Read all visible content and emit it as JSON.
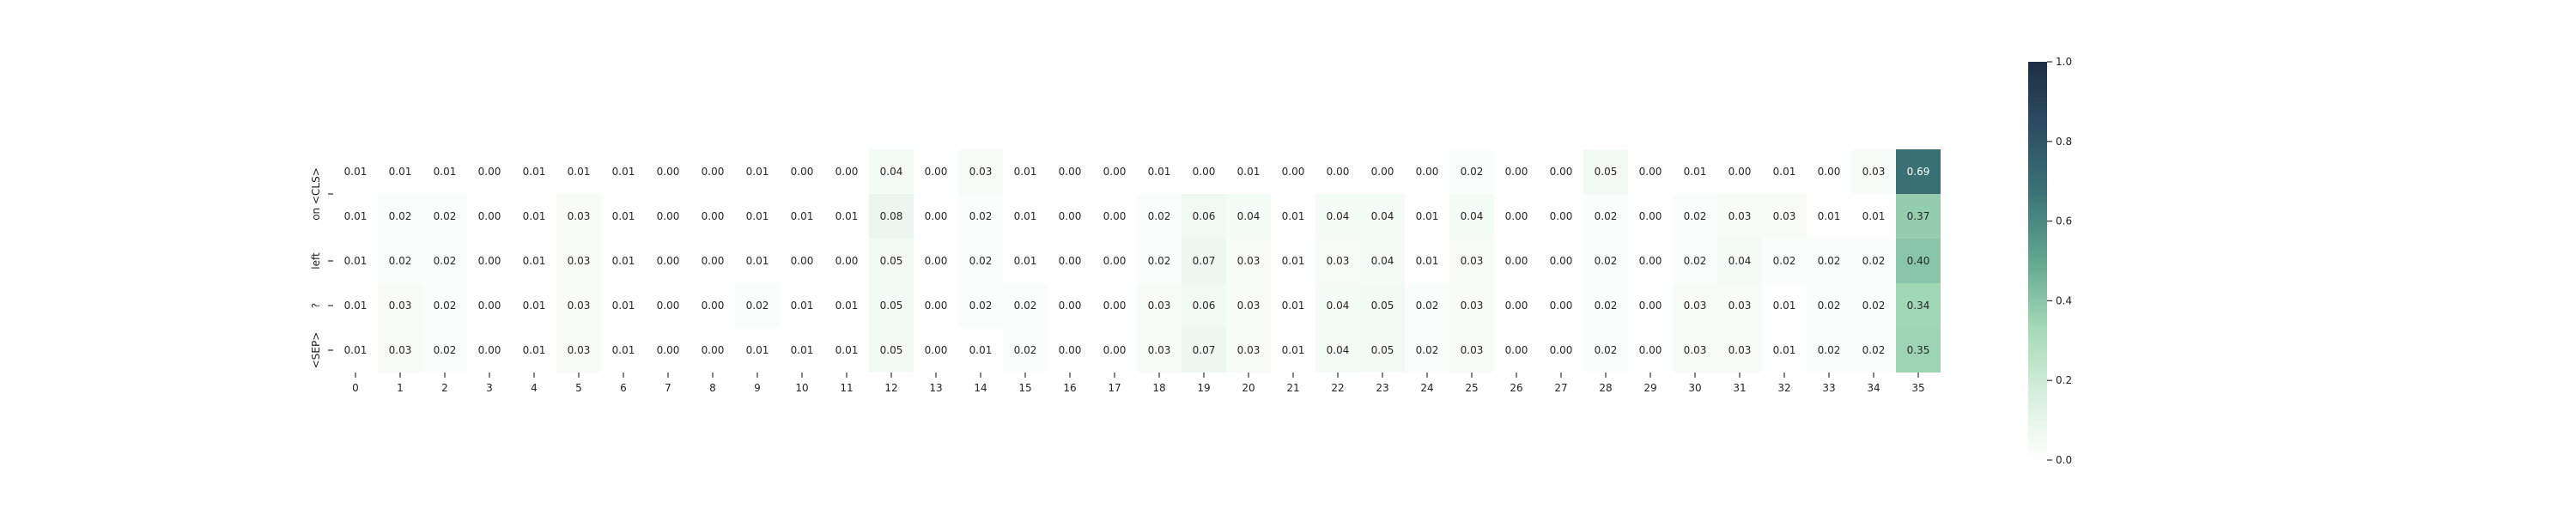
{
  "chart_data": {
    "type": "heatmap",
    "title": "",
    "xlabel": "",
    "ylabel": "",
    "x_categories": [
      "0",
      "1",
      "2",
      "3",
      "4",
      "5",
      "6",
      "7",
      "8",
      "9",
      "10",
      "11",
      "12",
      "13",
      "14",
      "15",
      "16",
      "17",
      "18",
      "19",
      "20",
      "21",
      "22",
      "23",
      "24",
      "25",
      "26",
      "27",
      "28",
      "29",
      "30",
      "31",
      "32",
      "33",
      "34",
      "35"
    ],
    "y_categories": [
      "on <CLS>",
      "on <CLS>",
      "left",
      "?",
      "<SEP>"
    ],
    "y_tick_labels": [
      {
        "row": 0.5,
        "label": "on <CLS>"
      },
      {
        "row": 2,
        "label": "left"
      },
      {
        "row": 3,
        "label": "?"
      },
      {
        "row": 4,
        "label": "<SEP>"
      }
    ],
    "values": [
      [
        0.01,
        0.01,
        0.01,
        0.0,
        0.01,
        0.01,
        0.01,
        0.0,
        0.0,
        0.01,
        0.0,
        0.0,
        0.04,
        0.0,
        0.03,
        0.01,
        0.0,
        0.0,
        0.01,
        0.0,
        0.01,
        0.0,
        0.0,
        0.0,
        0.0,
        0.02,
        0.0,
        0.0,
        0.05,
        0.0,
        0.01,
        0.0,
        0.01,
        0.0,
        0.03,
        0.69
      ],
      [
        0.01,
        0.02,
        0.02,
        0.0,
        0.01,
        0.03,
        0.01,
        0.0,
        0.0,
        0.01,
        0.01,
        0.01,
        0.08,
        0.0,
        0.02,
        0.01,
        0.0,
        0.0,
        0.02,
        0.06,
        0.04,
        0.01,
        0.04,
        0.04,
        0.01,
        0.04,
        0.0,
        0.0,
        0.02,
        0.0,
        0.02,
        0.03,
        0.03,
        0.01,
        0.01,
        0.37
      ],
      [
        0.01,
        0.02,
        0.02,
        0.0,
        0.01,
        0.03,
        0.01,
        0.0,
        0.0,
        0.01,
        0.0,
        0.0,
        0.05,
        0.0,
        0.02,
        0.01,
        0.0,
        0.0,
        0.02,
        0.07,
        0.03,
        0.01,
        0.03,
        0.04,
        0.01,
        0.03,
        0.0,
        0.0,
        0.02,
        0.0,
        0.02,
        0.04,
        0.02,
        0.02,
        0.02,
        0.4
      ],
      [
        0.01,
        0.03,
        0.02,
        0.0,
        0.01,
        0.03,
        0.01,
        0.0,
        0.0,
        0.02,
        0.01,
        0.01,
        0.05,
        0.0,
        0.02,
        0.02,
        0.0,
        0.0,
        0.03,
        0.06,
        0.03,
        0.01,
        0.04,
        0.05,
        0.02,
        0.03,
        0.0,
        0.0,
        0.02,
        0.0,
        0.03,
        0.03,
        0.01,
        0.02,
        0.02,
        0.34
      ],
      [
        0.01,
        0.03,
        0.02,
        0.0,
        0.01,
        0.03,
        0.01,
        0.0,
        0.0,
        0.01,
        0.01,
        0.01,
        0.05,
        0.0,
        0.01,
        0.02,
        0.0,
        0.0,
        0.03,
        0.07,
        0.03,
        0.01,
        0.04,
        0.05,
        0.02,
        0.03,
        0.0,
        0.0,
        0.02,
        0.0,
        0.03,
        0.03,
        0.01,
        0.02,
        0.02,
        0.35
      ]
    ],
    "colorbar": {
      "range": [
        0,
        1
      ],
      "ticks": [
        "0.0",
        "0.2",
        "0.4",
        "0.6",
        "0.8",
        "1.0"
      ],
      "colors": [
        "#ffffff",
        "#d6efdc",
        "#a3d9b7",
        "#62a78f",
        "#3b7576",
        "#2d4e65",
        "#1f2d47"
      ]
    },
    "grid": false,
    "legend": "none"
  }
}
